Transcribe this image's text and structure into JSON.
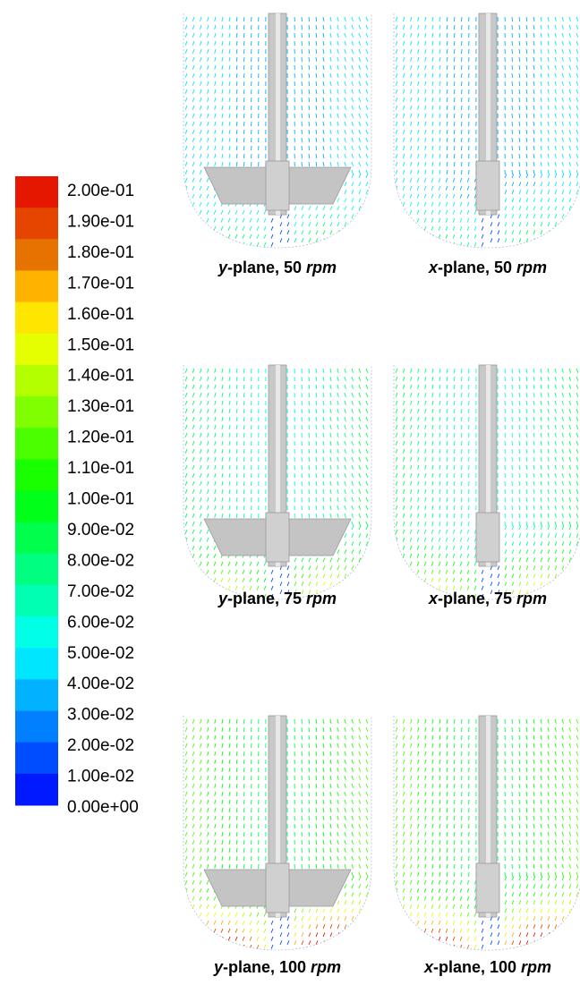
{
  "colorbar": {
    "labels": [
      "2.00e-01",
      "1.90e-01",
      "1.80e-01",
      "1.70e-01",
      "1.60e-01",
      "1.50e-01",
      "1.40e-01",
      "1.30e-01",
      "1.20e-01",
      "1.10e-01",
      "1.00e-01",
      "9.00e-02",
      "8.00e-02",
      "7.00e-02",
      "6.00e-02",
      "5.00e-02",
      "4.00e-02",
      "3.00e-02",
      "2.00e-02",
      "1.00e-02",
      "0.00e+00"
    ]
  },
  "panels": [
    {
      "caption": [
        "y",
        "-plane, 50 ",
        "rpm"
      ]
    },
    {
      "caption": [
        "x",
        "-plane, 50 ",
        "rpm"
      ]
    },
    {
      "caption": [
        "y",
        "-plane, 75 ",
        "rpm"
      ]
    },
    {
      "caption": [
        "x",
        "-plane, 75 ",
        "rpm"
      ]
    },
    {
      "caption": [
        "y",
        "-plane, 100 ",
        "rpm"
      ]
    },
    {
      "caption": [
        "x",
        "-plane, 100 ",
        "rpm"
      ]
    }
  ]
}
